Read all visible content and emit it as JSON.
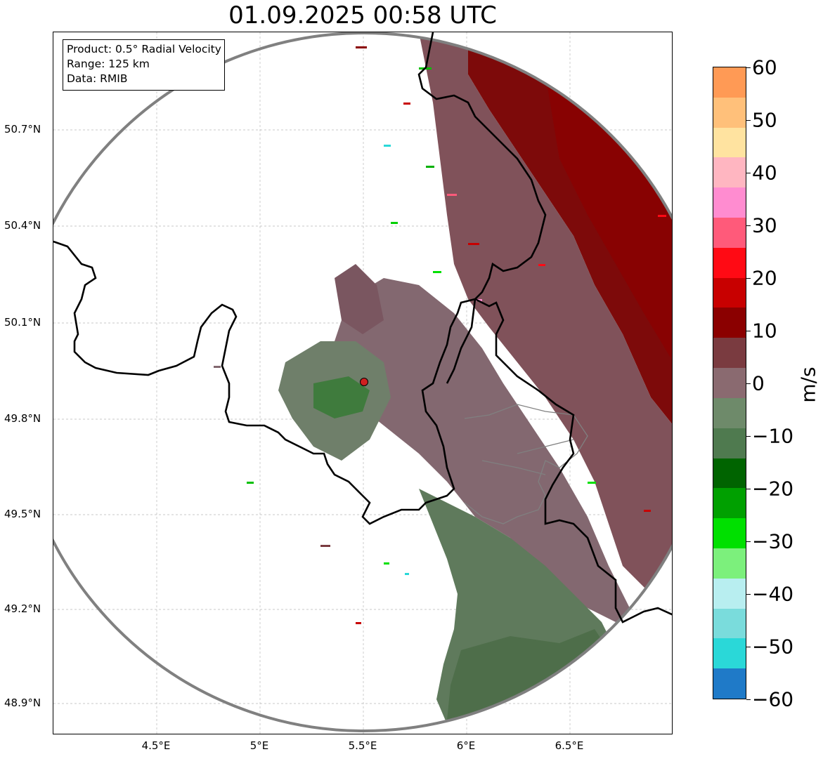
{
  "title": "01.09.2025 00:58 UTC",
  "info_box": {
    "product": "Product: 0.5° Radial Velocity",
    "range": "Range: 125 km",
    "data_source": "Data: RMIB"
  },
  "lat_labels": [
    "50.7°N",
    "50.4°N",
    "50.1°N",
    "49.8°N",
    "49.5°N",
    "49.2°N",
    "48.9°N"
  ],
  "lon_labels": [
    "4.5°E",
    "5°E",
    "5.5°E",
    "6°E",
    "6.5°E"
  ],
  "colorbar": {
    "unit": "m/s",
    "ticks": [
      "60",
      "50",
      "40",
      "30",
      "20",
      "10",
      "0",
      "−10",
      "−20",
      "−30",
      "−40",
      "−50",
      "−60"
    ],
    "range": [
      -60,
      60
    ],
    "colors_top_to_bottom": [
      "#ff9a55",
      "#ffc07a",
      "#ffe3a0",
      "#ffb6c1",
      "#ff8cd0",
      "#ff5a7a",
      "#ff0a14",
      "#c80000",
      "#8b0000",
      "#7a3b40",
      "#8a6a70",
      "#6e8a6a",
      "#4f7a4f",
      "#006400",
      "#00a000",
      "#00e000",
      "#7cf07c",
      "#b8eef0",
      "#7adcdc",
      "#2ad8d8",
      "#1f7ac8"
    ]
  },
  "radar": {
    "site_marker_color": "#d02020",
    "range_ring_color": "#808080",
    "border_color": "#000000",
    "admin_border_color": "#808080"
  }
}
